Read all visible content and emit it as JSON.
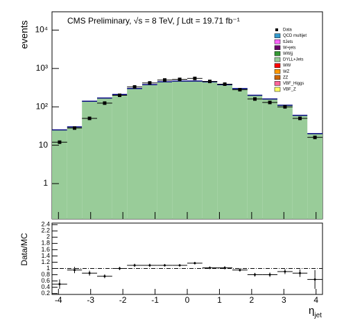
{
  "chart_data": {
    "type": "histogram",
    "title": "CMS Preliminary, √s = 8 TeV, ∫ Ldt = 19.71 fb⁻¹",
    "y_label": "events",
    "x_label": "η",
    "x_label_sub": "jet",
    "bins": [
      -4.2,
      -3.73,
      -3.27,
      -2.8,
      -2.33,
      -1.87,
      -1.4,
      -0.93,
      -0.47,
      0,
      0.47,
      0.93,
      1.4,
      1.87,
      2.33,
      2.8,
      3.27,
      3.73,
      4.2
    ],
    "series": [
      {
        "name": "DYLL+Jets",
        "color": "#99cc99",
        "values": [
          25,
          30,
          140,
          170,
          210,
          300,
          380,
          450,
          470,
          470,
          450,
          380,
          300,
          200,
          160,
          110,
          60,
          20
        ]
      }
    ],
    "data": {
      "name": "Data",
      "values": [
        12,
        28,
        50,
        125,
        200,
        330,
        420,
        500,
        520,
        550,
        460,
        390,
        280,
        160,
        130,
        100,
        50,
        16
      ]
    },
    "legend_entries": [
      {
        "name": "QCD multijet",
        "color": "#3399cc"
      },
      {
        "name": "ttJets",
        "color": "#ff66ff"
      },
      {
        "name": "W+jets",
        "color": "#660066"
      },
      {
        "name": "WWjj",
        "color": "#339933"
      },
      {
        "name": "DYLL+Jets",
        "color": "#99cc99"
      },
      {
        "name": "WW",
        "color": "#ff0000"
      },
      {
        "name": "WZ",
        "color": "#ff9900"
      },
      {
        "name": "ZZ",
        "color": "#cc6600"
      },
      {
        "name": "VBF_Higgs",
        "color": "#ff6699"
      },
      {
        "name": "VBF_Z",
        "color": "#ffff66"
      }
    ],
    "log_y": true,
    "ylim": [
      0.12,
      30000
    ],
    "yticks": [
      1,
      10,
      {
        "value": 100,
        "label": "10²"
      },
      {
        "value": 1000,
        "label": "10³"
      },
      {
        "value": 10000,
        "label": "10⁴"
      }
    ],
    "xlim": [
      -4.2,
      4.2
    ],
    "xticks": [
      -4,
      -3,
      -2,
      -1,
      0,
      1,
      2,
      3,
      4
    ],
    "ratio": {
      "y_label": "Data/MC",
      "values": [
        0.5,
        0.95,
        0.85,
        0.75,
        1.0,
        1.1,
        1.1,
        1.1,
        1.1,
        1.17,
        1.02,
        1.02,
        0.95,
        0.8,
        0.8,
        0.9,
        0.85,
        0.65
      ],
      "errors": [
        0.15,
        0.1,
        0.08,
        0.06,
        0.05,
        0.05,
        0.05,
        0.04,
        0.04,
        0.04,
        0.04,
        0.05,
        0.05,
        0.06,
        0.07,
        0.08,
        0.12,
        0.3
      ],
      "ylim": [
        0.17,
        2.45
      ],
      "yticks": [
        0.2,
        0.4,
        0.6,
        0.8,
        1,
        1.2,
        1.4,
        1.6,
        1.8,
        2,
        2.2,
        2.4
      ],
      "reference": 1
    }
  }
}
